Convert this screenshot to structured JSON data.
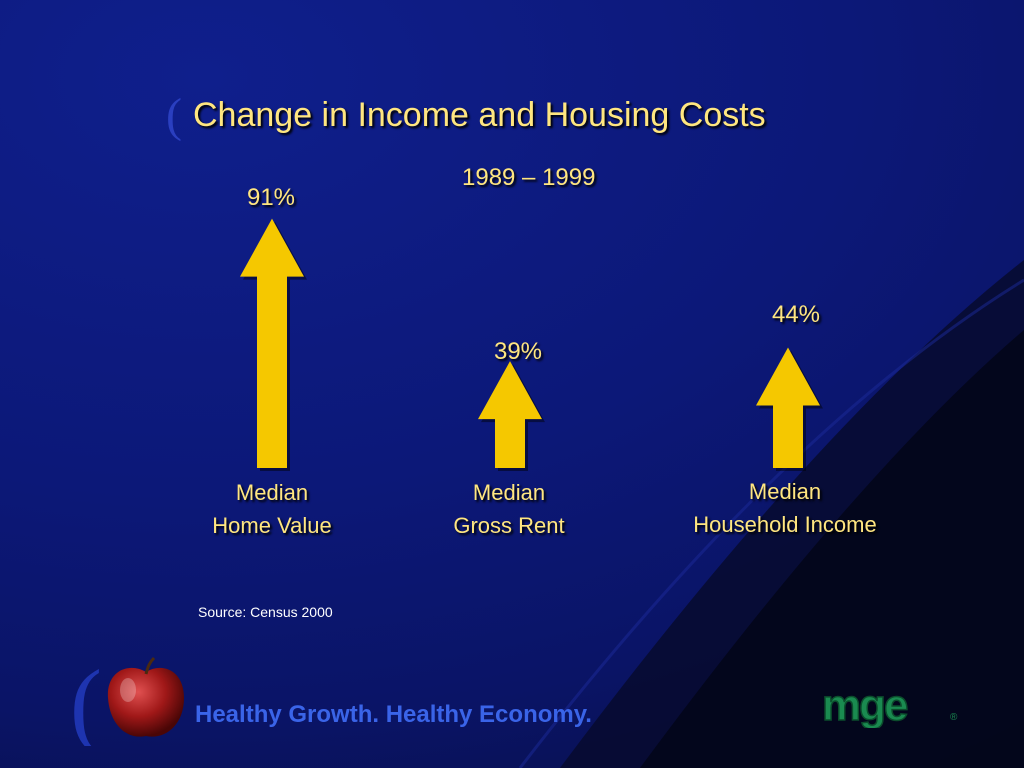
{
  "slide": {
    "title": "Change in Income and Housing Costs",
    "subtitle": "1989 – 1999",
    "source": "Source: Census 2000",
    "tagline": "Healthy Growth. Healthy Economy.",
    "logo_text": "mge",
    "colors": {
      "background": "#0c1878",
      "text": "#ffe680",
      "arrow": "#f5c800",
      "tagline": "#3a64e8",
      "logo": "#1a8a50"
    }
  },
  "chart_data": {
    "type": "bar",
    "categories": [
      "Median Home Value",
      "Median Gross Rent",
      "Median Household Income"
    ],
    "category_lines": [
      [
        "Median",
        "Home Value"
      ],
      [
        "Median",
        "Gross Rent"
      ],
      [
        "Median",
        "Household Income"
      ]
    ],
    "values": [
      91,
      39,
      44
    ],
    "value_labels": [
      "91%",
      "39%",
      "44%"
    ],
    "unit": "%",
    "title": "Change in Income and Housing Costs",
    "subtitle": "1989 – 1999",
    "xlabel": "",
    "ylabel": "",
    "grid": false,
    "legend": "none"
  }
}
